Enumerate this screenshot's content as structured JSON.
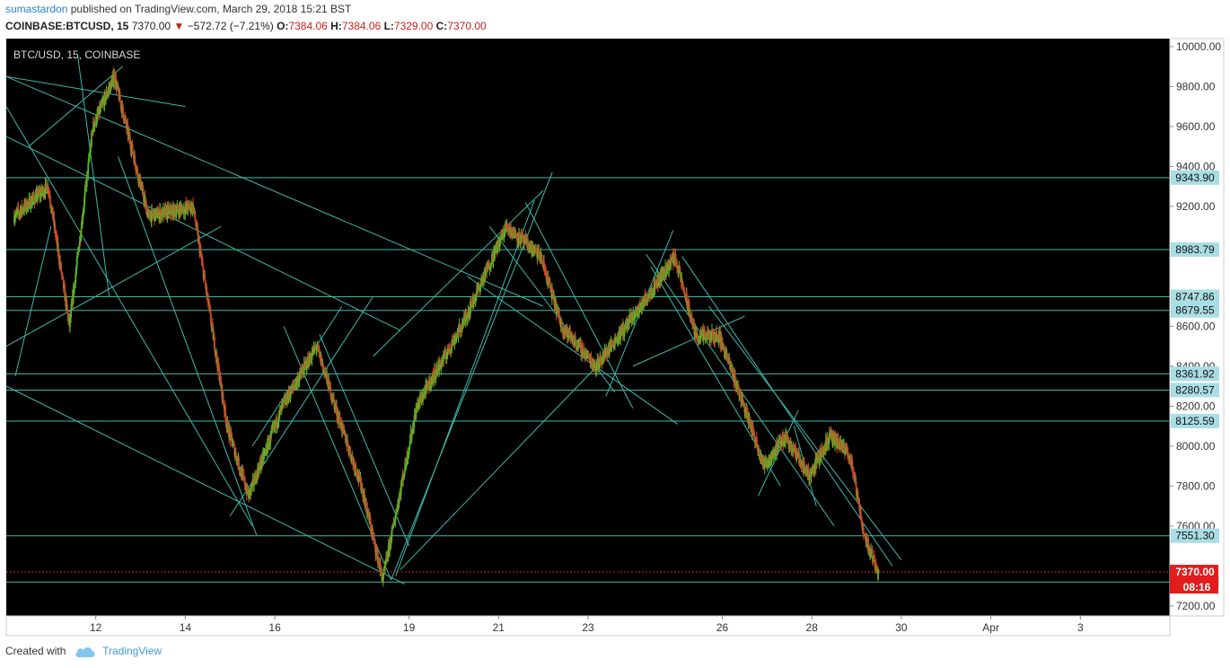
{
  "header": {
    "author": "sumastardon",
    "published_text": "published on TradingView.com, March 29, 2018 15:21 BST"
  },
  "ticker": {
    "symbol": "COINBASE:BTCUSD, 15",
    "last": "7370.00",
    "change": "−572.72 (−7.21%)",
    "open_label": "O:",
    "open": "7384.06",
    "high_label": "H:",
    "high": "7384.06",
    "low_label": "L:",
    "low": "7329.00",
    "close_label": "C:",
    "close": "7370.00"
  },
  "footer": {
    "created_with": "Created with",
    "brand": "TradingView"
  },
  "colors": {
    "background": "#000000",
    "candle_up": "#53b926",
    "candle_down": "#c94a2e",
    "trendline": "#3fb9a8",
    "price_marker": "#e11d1d",
    "level_label_bg": "#a9dee4"
  },
  "chart_data": {
    "type": "candlestick",
    "title": "BTC/USD, 15, COINBASE",
    "x_tick_labels": [
      "12",
      "14",
      "16",
      "19",
      "21",
      "23",
      "26",
      "28",
      "30",
      "Apr",
      "3"
    ],
    "y_tick_labels": [
      "10000.00",
      "9800.00",
      "9600.00",
      "9400.00",
      "9200.00",
      "8600.00",
      "8400.00",
      "8200.00",
      "8000.00",
      "7800.00",
      "7600.00",
      "7200.00"
    ],
    "ylim": [
      7150,
      10040
    ],
    "grid": false,
    "current_price": "7370.00",
    "countdown": "08:16",
    "horizontal_levels": [
      "9343.90",
      "8983.79",
      "8747.86",
      "8679.55",
      "8361.92",
      "8280.57",
      "8125.59",
      "7551.30",
      "7319.41"
    ],
    "approximate_path": [
      {
        "date": "Mar 10",
        "price": 9150
      },
      {
        "date": "Mar 11",
        "price": 9300
      },
      {
        "date": "Mar 11",
        "price": 8600
      },
      {
        "date": "Mar 12",
        "price": 9600
      },
      {
        "date": "Mar 12",
        "price": 9850
      },
      {
        "date": "Mar 13",
        "price": 9150
      },
      {
        "date": "Mar 14",
        "price": 9200
      },
      {
        "date": "Mar 15",
        "price": 8100
      },
      {
        "date": "Mar 15",
        "price": 7750
      },
      {
        "date": "Mar 16",
        "price": 8200
      },
      {
        "date": "Mar 17",
        "price": 8500
      },
      {
        "date": "Mar 17",
        "price": 8150
      },
      {
        "date": "Mar 18",
        "price": 7800
      },
      {
        "date": "Mar 18",
        "price": 7330
      },
      {
        "date": "Mar 19",
        "price": 8200
      },
      {
        "date": "Mar 20",
        "price": 8600
      },
      {
        "date": "Mar 21",
        "price": 9100
      },
      {
        "date": "Mar 22",
        "price": 8950
      },
      {
        "date": "Mar 22",
        "price": 8600
      },
      {
        "date": "Mar 23",
        "price": 8400
      },
      {
        "date": "Mar 24",
        "price": 8700
      },
      {
        "date": "Mar 25",
        "price": 8950
      },
      {
        "date": "Mar 25",
        "price": 8550
      },
      {
        "date": "Mar 26",
        "price": 8550
      },
      {
        "date": "Mar 26",
        "price": 8250
      },
      {
        "date": "Mar 27",
        "price": 7900
      },
      {
        "date": "Mar 27",
        "price": 8050
      },
      {
        "date": "Mar 28",
        "price": 7850
      },
      {
        "date": "Mar 28",
        "price": 8050
      },
      {
        "date": "Mar 29",
        "price": 7950
      },
      {
        "date": "Mar 29",
        "price": 7550
      },
      {
        "date": "Mar 29",
        "price": 7370
      }
    ]
  }
}
